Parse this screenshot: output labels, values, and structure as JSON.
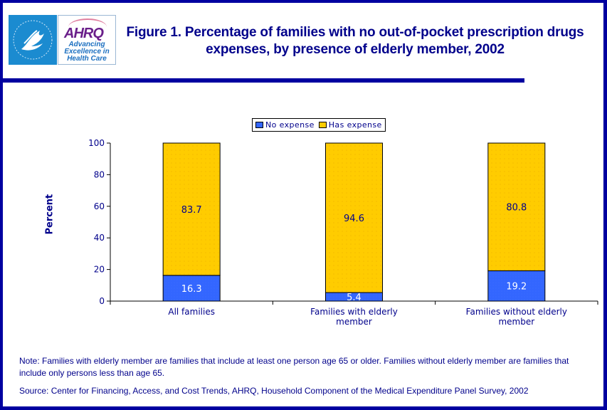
{
  "logo": {
    "hhs_alt": "Department of Health & Human Services USA",
    "ahrq_mark": "AHRQ",
    "ahrq_tagline": [
      "Advancing",
      "Excellence in",
      "Health Care"
    ]
  },
  "title": "Figure 1. Percentage of families with no out-of-pocket prescription drugs expenses, by presence of elderly member, 2002",
  "colors": {
    "frame": "#0000a0",
    "text": "#00008b",
    "no_expense": "#3366ff",
    "has_expense": "#ffcc00"
  },
  "chart_data": {
    "type": "bar",
    "stacked": true,
    "title": "Figure 1. Percentage of families with no out-of-pocket prescription drugs expenses, by presence of elderly member, 2002",
    "xlabel": "",
    "ylabel": "Percent",
    "ylim": [
      0,
      100
    ],
    "yticks": [
      0,
      20,
      40,
      60,
      80,
      100
    ],
    "grid": false,
    "legend": "top-center",
    "categories": [
      [
        "All families"
      ],
      [
        "Families with elderly",
        "member"
      ],
      [
        "Families without elderly",
        "member"
      ]
    ],
    "series": [
      {
        "name": "No expense",
        "color": "#3366ff",
        "values": [
          16.3,
          5.4,
          19.2
        ],
        "labels": [
          "16.3",
          "5.4",
          "19.2"
        ]
      },
      {
        "name": "Has expense",
        "color": "#ffcc00",
        "values": [
          83.7,
          94.6,
          80.8
        ],
        "labels": [
          "83.7",
          "94.6",
          "80.8"
        ]
      }
    ]
  },
  "note": "Note: Families with elderly member are families that include at least one person age 65 or older. Families without elderly member are families that include only persons less than age 65.",
  "source": "Source: Center for Financing, Access, and Cost Trends, AHRQ, Household Component of the Medical Expenditure Panel Survey, 2002"
}
